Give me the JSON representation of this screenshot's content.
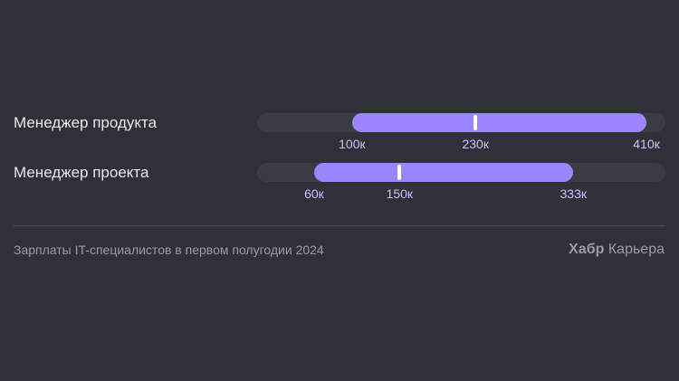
{
  "chart_data": {
    "type": "range",
    "xlim": [
      0,
      430
    ],
    "series": [
      {
        "label": "Менеджер продукта",
        "min": 100,
        "median": 230,
        "max": 410,
        "min_label": "100к",
        "median_label": "230к",
        "max_label": "410к"
      },
      {
        "label": "Менеджер проекта",
        "min": 60,
        "median": 150,
        "max": 333,
        "min_label": "60к",
        "median_label": "150к",
        "max_label": "333к"
      }
    ]
  },
  "footer": {
    "caption": "Зарплаты IT-специалистов в первом полугодии 2024",
    "brand_bold": "Хабр",
    "brand_rest": "Карьера"
  },
  "colors": {
    "background": "#2f3138",
    "track": "#3a3c44",
    "range": "#9b86ff",
    "median": "#ffffff",
    "value_text": "#c8c3ff"
  }
}
